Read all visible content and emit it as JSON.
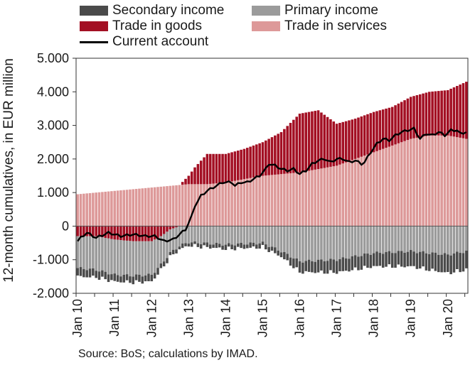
{
  "chart_data": {
    "type": "bar",
    "stacked": true,
    "ylabel": "12-month cumulatives, in EUR million",
    "ylim": [
      -2000,
      5000
    ],
    "yticks": [
      -2000,
      -1000,
      0,
      1000,
      2000,
      3000,
      4000,
      5000
    ],
    "ytick_labels": [
      "-2.000",
      "-1.000",
      "0",
      "1.000",
      "2.000",
      "3.000",
      "4.000",
      "5.000"
    ],
    "xtick_labels": [
      "Jan 10",
      "Jan 11",
      "Jan 12",
      "Jan 13",
      "Jan 14",
      "Jan 15",
      "Jan 16",
      "Jan 17",
      "Jan 18",
      "Jan 19",
      "Jan 20"
    ],
    "x_start": "Jan 10",
    "x_end": "Jul 20",
    "legend_position": "top",
    "source": "Source: BoS; calculations by IMAD.",
    "colors": {
      "secondary": "#4a4a4a",
      "primary": "#9b9b9b",
      "goods": "#a30f23",
      "services": "#dd9999",
      "current": "#000000"
    },
    "series": [
      {
        "name": "Secondary income",
        "key": "secondary",
        "anchors": [
          [
            0,
            -250
          ],
          [
            12,
            -200
          ],
          [
            24,
            -200
          ],
          [
            30,
            -120
          ],
          [
            36,
            -100
          ],
          [
            48,
            -130
          ],
          [
            60,
            -130
          ],
          [
            66,
            -160
          ],
          [
            72,
            -320
          ],
          [
            84,
            -380
          ],
          [
            96,
            -400
          ],
          [
            108,
            -450
          ],
          [
            120,
            -550
          ],
          [
            126,
            -550
          ]
        ]
      },
      {
        "name": "Primary income",
        "key": "primary",
        "anchors": [
          [
            0,
            -950
          ],
          [
            12,
            -1050
          ],
          [
            24,
            -1000
          ],
          [
            30,
            -700
          ],
          [
            36,
            -480
          ],
          [
            48,
            -550
          ],
          [
            60,
            -500
          ],
          [
            66,
            -750
          ],
          [
            72,
            -1050
          ],
          [
            84,
            -1000
          ],
          [
            96,
            -800
          ],
          [
            108,
            -750
          ],
          [
            120,
            -850
          ],
          [
            126,
            -750
          ]
        ]
      },
      {
        "name": "Trade in goods",
        "key": "goods",
        "anchors": [
          [
            0,
            -300
          ],
          [
            6,
            -300
          ],
          [
            12,
            -400
          ],
          [
            18,
            -450
          ],
          [
            24,
            -450
          ],
          [
            27,
            -300
          ],
          [
            30,
            -100
          ],
          [
            33,
            0
          ],
          [
            36,
            250
          ],
          [
            38,
            500
          ],
          [
            42,
            900
          ],
          [
            48,
            850
          ],
          [
            54,
            900
          ],
          [
            60,
            1000
          ],
          [
            66,
            1250
          ],
          [
            72,
            1750
          ],
          [
            78,
            1750
          ],
          [
            84,
            1250
          ],
          [
            90,
            1200
          ],
          [
            96,
            1200
          ],
          [
            102,
            1150
          ],
          [
            108,
            1250
          ],
          [
            114,
            1300
          ],
          [
            120,
            1350
          ],
          [
            126,
            1700
          ],
          [
            127,
            1900
          ]
        ]
      },
      {
        "name": "Trade in services",
        "key": "services",
        "anchors": [
          [
            0,
            950
          ],
          [
            6,
            1000
          ],
          [
            12,
            1050
          ],
          [
            18,
            1100
          ],
          [
            24,
            1150
          ],
          [
            30,
            1200
          ],
          [
            36,
            1250
          ],
          [
            42,
            1250
          ],
          [
            48,
            1300
          ],
          [
            54,
            1400
          ],
          [
            60,
            1500
          ],
          [
            66,
            1550
          ],
          [
            72,
            1600
          ],
          [
            78,
            1700
          ],
          [
            84,
            1800
          ],
          [
            90,
            2000
          ],
          [
            96,
            2200
          ],
          [
            102,
            2400
          ],
          [
            108,
            2600
          ],
          [
            114,
            2700
          ],
          [
            120,
            2700
          ],
          [
            126,
            2600
          ],
          [
            127,
            2450
          ]
        ]
      },
      {
        "name": "Current account",
        "key": "current",
        "type": "line",
        "anchors": [
          [
            0,
            -450
          ],
          [
            1,
            -350
          ],
          [
            3,
            -200
          ],
          [
            6,
            -350
          ],
          [
            10,
            -200
          ],
          [
            14,
            -300
          ],
          [
            18,
            -250
          ],
          [
            22,
            -300
          ],
          [
            25,
            -300
          ],
          [
            28,
            -450
          ],
          [
            31,
            -400
          ],
          [
            33,
            -250
          ],
          [
            35,
            -100
          ],
          [
            37,
            300
          ],
          [
            38,
            600
          ],
          [
            40,
            900
          ],
          [
            42,
            1050
          ],
          [
            45,
            1200
          ],
          [
            47,
            1300
          ],
          [
            49,
            1300
          ],
          [
            50,
            1300
          ],
          [
            51,
            1200
          ],
          [
            53,
            1300
          ],
          [
            55,
            1300
          ],
          [
            57,
            1400
          ],
          [
            59,
            1500
          ],
          [
            61,
            1700
          ],
          [
            62,
            1850
          ],
          [
            64,
            1800
          ],
          [
            66,
            1700
          ],
          [
            68,
            1650
          ],
          [
            70,
            1700
          ],
          [
            72,
            1550
          ],
          [
            74,
            1650
          ],
          [
            76,
            1850
          ],
          [
            78,
            1950
          ],
          [
            80,
            2000
          ],
          [
            82,
            1900
          ],
          [
            84,
            2000
          ],
          [
            86,
            2000
          ],
          [
            88,
            1900
          ],
          [
            90,
            1950
          ],
          [
            92,
            1850
          ],
          [
            93,
            1900
          ],
          [
            95,
            2200
          ],
          [
            97,
            2450
          ],
          [
            99,
            2600
          ],
          [
            101,
            2550
          ],
          [
            103,
            2700
          ],
          [
            105,
            2800
          ],
          [
            107,
            2850
          ],
          [
            109,
            2900
          ],
          [
            111,
            2600
          ],
          [
            113,
            2750
          ],
          [
            115,
            2700
          ],
          [
            117,
            2800
          ],
          [
            119,
            2700
          ],
          [
            121,
            2850
          ],
          [
            123,
            2850
          ],
          [
            124,
            2750
          ],
          [
            126,
            2800
          ],
          [
            127,
            3000
          ]
        ]
      }
    ]
  }
}
